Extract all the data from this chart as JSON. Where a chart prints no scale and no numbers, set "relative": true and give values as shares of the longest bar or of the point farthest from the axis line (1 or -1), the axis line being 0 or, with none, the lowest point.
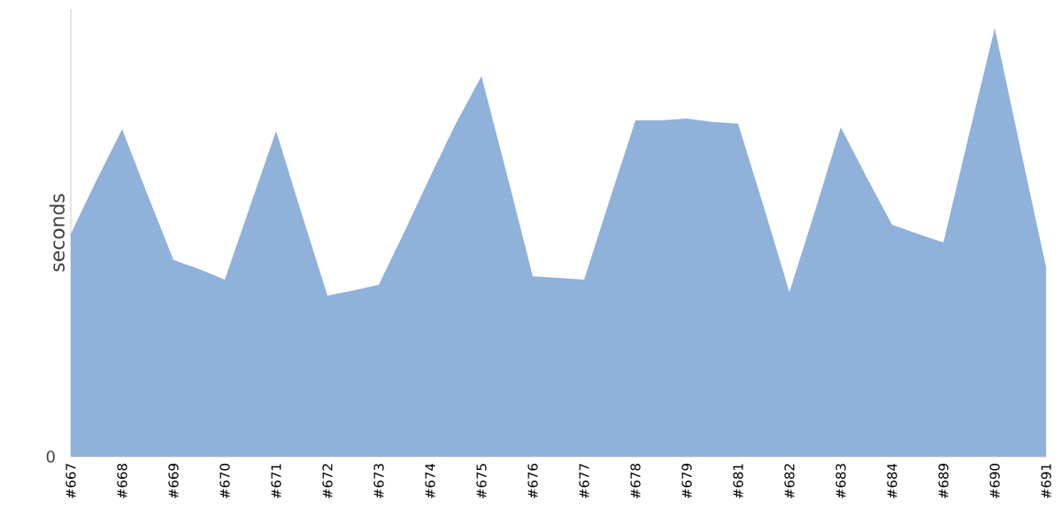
{
  "chart_data": {
    "type": "area",
    "ylabel": "seconds",
    "relative": true,
    "color": "#8fb1da",
    "annotations": [
      "0"
    ],
    "categories": [
      "#667",
      null,
      "#668",
      null,
      "#669",
      null,
      "#670",
      null,
      "#671",
      null,
      "#672",
      null,
      "#673",
      null,
      "#674",
      null,
      "#675",
      null,
      "#676",
      null,
      "#677",
      null,
      "#678",
      null,
      "#679",
      null,
      "#681",
      null,
      "#682",
      null,
      "#683",
      null,
      "#684",
      null,
      "#689",
      null,
      "#690",
      null,
      "#691"
    ],
    "values": [
      0.52,
      0.645,
      0.764,
      0.61,
      0.459,
      0.438,
      0.413,
      0.587,
      0.76,
      0.566,
      0.376,
      0.388,
      0.401,
      0.525,
      0.653,
      0.777,
      0.888,
      0.657,
      0.421,
      0.417,
      0.413,
      0.6,
      0.785,
      0.785,
      0.789,
      0.781,
      0.777,
      0.583,
      0.384,
      0.574,
      0.769,
      0.653,
      0.541,
      0.52,
      0.5,
      0.752,
      1,
      0.719,
      0.442
    ]
  }
}
